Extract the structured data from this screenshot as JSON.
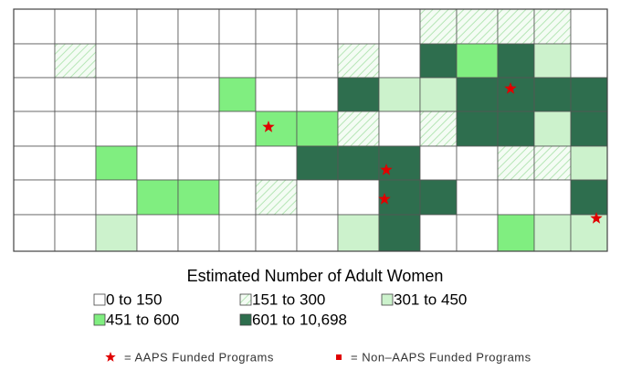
{
  "title": "Estimated Number of Adult Women",
  "legend": [
    {
      "label": "0 to 150",
      "color": "#ffffff"
    },
    {
      "label": "151 to 300",
      "color": "hatch"
    },
    {
      "label": "301 to 450",
      "color": "#ccf2cc"
    },
    {
      "label": "451 to 600",
      "color": "#80ee80"
    },
    {
      "label": "601 to 10,698",
      "color": "#2e6e4e"
    }
  ],
  "markers": [
    {
      "label": "= AAPS Funded Programs",
      "shape": "star",
      "color": "#e00000"
    },
    {
      "label": "= Non–AAPS Funded Programs",
      "shape": "square",
      "color": "#e00000"
    }
  ]
}
